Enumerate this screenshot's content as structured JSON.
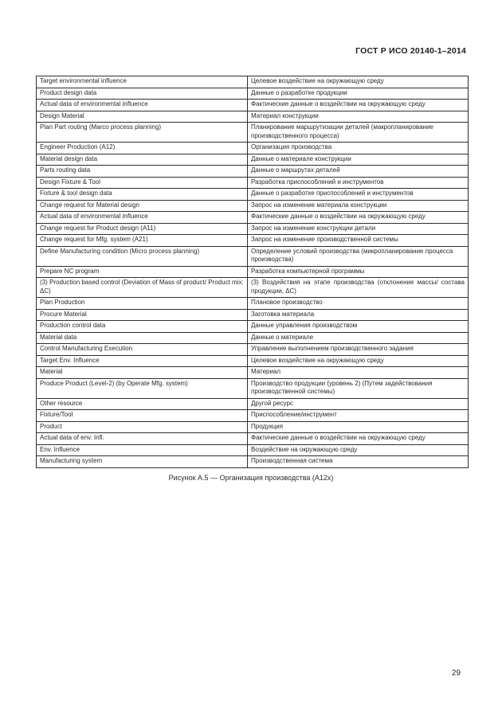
{
  "page": {
    "header": "ГОСТ Р ИСО 20140-1–2014",
    "caption": "Рисунок А.5 — Организация производства (А12х)",
    "page_number": "29"
  },
  "table": {
    "rows": [
      {
        "en": "Target environmental influence",
        "ru": "Целевое воздействие на окружающую среду"
      },
      {
        "en": "Product design data",
        "ru": "Данные о разработке продукции"
      },
      {
        "en": "Actual data of environmental influence",
        "ru": "Фактические данные о воздействии на окружающую среду"
      },
      {
        "en": "Design Material",
        "ru": "Материал конструкции"
      },
      {
        "en": "Plan Part routing (Marco process planning)",
        "ru": "Планирование маршрутизации деталей (макропланирование производственного процесса)"
      },
      {
        "en": "Engineer Production (A12)",
        "ru": "Организация производства"
      },
      {
        "en": "Material design data",
        "ru": "Данные о материале конструкции"
      },
      {
        "en": "Parts routing data",
        "ru": "Данные о маршрутах деталей"
      },
      {
        "en": "Design Fixture & Tool",
        "ru": "Разработка приспособлений и инструментов"
      },
      {
        "en": "Fixture & tool design data",
        "ru": "Данные о разработке приспособлений и инструментов"
      },
      {
        "en": "Change request for Material design",
        "ru": "Запрос на изменение материала конструкции"
      },
      {
        "en": "Actual data of environmental influence",
        "ru": "Фактические данные о воздействии на окружающую среду"
      },
      {
        "en": "Change request for Product design (A11)",
        "ru": "Запрос на изменение конструкции детали"
      },
      {
        "en": "Change request for Mfg. system (A21)",
        "ru": "Запрос на изменение производственной системы"
      },
      {
        "en": "Define Manufacturing condition (Micro process planning)",
        "ru": "Определение условий производства (микропланирование процесса производства)"
      },
      {
        "en": "Prepare NC program",
        "ru": "Разработка компьютерной программы"
      },
      {
        "en": "(3) Production based control (Deviation of Mass of product/ Product mix: ΔC)",
        "ru": "(3) Воздействия на этапе производства (отклонение массы/ состава продукции, ΔС)",
        "ru_justify": true
      },
      {
        "en": "Plan Production",
        "ru": "Плановое производство"
      },
      {
        "en": "Procure Material",
        "ru": "Заготовка материала"
      },
      {
        "en": "Production control data",
        "ru": "Данные управления производством"
      },
      {
        "en": "Material data",
        "ru": "Данные о материале"
      },
      {
        "en": "Control Manufacturing Execution",
        "ru": "Управление выполнением производственного задания"
      },
      {
        "en": "Target Env. Influence",
        "ru": "Целевое воздействие на окружающую среду"
      },
      {
        "en": "Material",
        "ru": "Материал"
      },
      {
        "en": "Produce Product (Level-2) (by Operate Mfg. system)",
        "ru": "Производство продукции (уровень 2) (Путем задействования производственной системы)"
      },
      {
        "en": "Other resource",
        "ru": "Другой ресурс"
      },
      {
        "en": "Fixture/Tool",
        "ru": "Приспособление/инструмент"
      },
      {
        "en": "Product",
        "ru": "Продукция"
      },
      {
        "en": "Actual data of env. Infl.",
        "ru": "Фактические данные о воздействии на окружающую среду"
      },
      {
        "en": "Env. Influence",
        "ru": "Воздействие на окружающую среду"
      },
      {
        "en": "Manufacturing system",
        "ru": "Производственная система"
      }
    ]
  }
}
